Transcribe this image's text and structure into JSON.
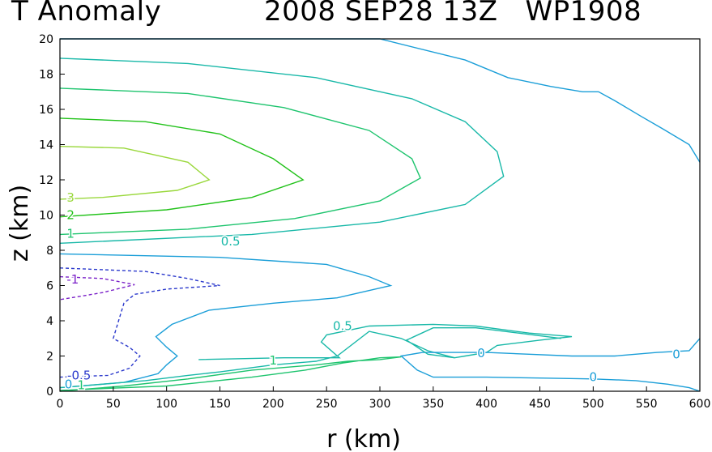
{
  "header": {
    "title_left": "T Anomaly",
    "title_right": "2008 SEP28 13Z   WP1908"
  },
  "chart_data": {
    "type": "contour",
    "title": "T Anomaly 2008 SEP28 13Z WP1908",
    "xlabel": "r (km)",
    "ylabel": "z (km)",
    "xlim": [
      0,
      600
    ],
    "ylim": [
      0,
      20
    ],
    "xticks": [
      0,
      50,
      100,
      150,
      200,
      250,
      300,
      350,
      400,
      450,
      500,
      550,
      600
    ],
    "yticks": [
      0,
      2,
      4,
      6,
      8,
      10,
      12,
      14,
      16,
      18,
      20
    ],
    "contours": [
      {
        "level": "3",
        "color": "#9ad83c",
        "dashed": false,
        "points": [
          [
            0,
            13.9
          ],
          [
            60,
            13.8
          ],
          [
            120,
            13.0
          ],
          [
            140,
            12.0
          ],
          [
            110,
            11.4
          ],
          [
            40,
            11.0
          ],
          [
            0,
            10.9
          ]
        ]
      },
      {
        "level": "2",
        "color": "#22c21a",
        "dashed": false,
        "points": [
          [
            0,
            15.5
          ],
          [
            80,
            15.3
          ],
          [
            150,
            14.6
          ],
          [
            200,
            13.2
          ],
          [
            228,
            12.0
          ],
          [
            180,
            11.0
          ],
          [
            100,
            10.3
          ],
          [
            0,
            9.9
          ]
        ]
      },
      {
        "level": "1",
        "color": "#1ec46e",
        "dashed": false,
        "points": [
          [
            0,
            17.2
          ],
          [
            120,
            16.9
          ],
          [
            210,
            16.1
          ],
          [
            290,
            14.8
          ],
          [
            330,
            13.2
          ],
          [
            338,
            12.1
          ],
          [
            300,
            10.8
          ],
          [
            220,
            9.8
          ],
          [
            120,
            9.2
          ],
          [
            0,
            8.9
          ]
        ]
      },
      {
        "level": "0.5",
        "color": "#18b8a8",
        "dashed": false,
        "points": [
          [
            0,
            18.9
          ],
          [
            120,
            18.6
          ],
          [
            240,
            17.8
          ],
          [
            330,
            16.6
          ],
          [
            380,
            15.3
          ],
          [
            410,
            13.6
          ],
          [
            416,
            12.2
          ],
          [
            380,
            10.6
          ],
          [
            300,
            9.6
          ],
          [
            180,
            8.9
          ],
          [
            0,
            8.4
          ]
        ]
      },
      {
        "level": "0",
        "color": "#1a9ed8",
        "dashed": false,
        "points": [
          [
            0,
            20.0
          ],
          [
            300,
            20.0
          ],
          [
            380,
            18.8
          ],
          [
            420,
            17.8
          ],
          [
            460,
            17.3
          ],
          [
            490,
            17.0
          ],
          [
            505,
            17.0
          ],
          [
            520,
            16.5
          ],
          [
            545,
            15.6
          ],
          [
            565,
            14.9
          ],
          [
            590,
            14.0
          ],
          [
            600,
            13.0
          ]
        ]
      },
      {
        "level": "0",
        "color": "#1a9ed8",
        "dashed": false,
        "points": [
          [
            0,
            7.8
          ],
          [
            150,
            7.6
          ],
          [
            250,
            7.2
          ],
          [
            290,
            6.5
          ],
          [
            310,
            6.0
          ],
          [
            260,
            5.3
          ],
          [
            200,
            5.0
          ],
          [
            140,
            4.6
          ],
          [
            105,
            3.8
          ],
          [
            90,
            3.1
          ],
          [
            100,
            2.5
          ],
          [
            110,
            2.0
          ],
          [
            100,
            1.5
          ],
          [
            92,
            1.0
          ],
          [
            60,
            0.5
          ],
          [
            0,
            0.2
          ]
        ]
      },
      {
        "level": "0.5",
        "color": "#18b8a8",
        "dashed": false,
        "points": [
          [
            130,
            1.8
          ],
          [
            210,
            1.9
          ],
          [
            262,
            1.9
          ],
          [
            245,
            2.8
          ],
          [
            250,
            3.2
          ],
          [
            290,
            3.7
          ],
          [
            350,
            3.8
          ],
          [
            390,
            3.7
          ],
          [
            440,
            3.3
          ],
          [
            480,
            3.1
          ],
          [
            450,
            2.9
          ],
          [
            410,
            2.6
          ],
          [
            400,
            2.2
          ],
          [
            380,
            2.0
          ],
          [
            370,
            1.9
          ],
          [
            345,
            2.3
          ],
          [
            320,
            3.0
          ],
          [
            290,
            3.4
          ],
          [
            260,
            2.0
          ],
          [
            240,
            1.7
          ],
          [
            200,
            1.5
          ],
          [
            150,
            1.1
          ],
          [
            120,
            0.9
          ],
          [
            80,
            0.6
          ],
          [
            0,
            0.2
          ]
        ]
      },
      {
        "level": "1",
        "color": "#1ec46e",
        "dashed": false,
        "points": [
          [
            0,
            0.05
          ],
          [
            100,
            0.3
          ],
          [
            180,
            0.8
          ],
          [
            230,
            1.2
          ],
          [
            265,
            1.6
          ],
          [
            300,
            1.9
          ],
          [
            320,
            1.95
          ],
          [
            300,
            1.8
          ],
          [
            270,
            1.7
          ],
          [
            240,
            1.5
          ],
          [
            180,
            1.2
          ],
          [
            120,
            0.7
          ],
          [
            60,
            0.3
          ],
          [
            0,
            0.0
          ]
        ]
      },
      {
        "level": "0",
        "color": "#1a9ed8",
        "dashed": false,
        "points": [
          [
            600,
            3.0
          ],
          [
            590,
            2.3
          ],
          [
            560,
            2.2
          ],
          [
            520,
            2.0
          ],
          [
            480,
            2.0
          ],
          [
            440,
            2.1
          ],
          [
            400,
            2.2
          ],
          [
            340,
            2.2
          ],
          [
            320,
            2.0
          ],
          [
            335,
            1.2
          ],
          [
            350,
            0.8
          ],
          [
            400,
            0.8
          ],
          [
            450,
            0.75
          ],
          [
            500,
            0.7
          ],
          [
            540,
            0.6
          ],
          [
            570,
            0.4
          ],
          [
            590,
            0.2
          ],
          [
            600,
            0.0
          ]
        ]
      },
      {
        "level": "0.5",
        "color": "#18b8a8",
        "dashed": false,
        "points": [
          [
            370,
            1.9
          ],
          [
            345,
            2.1
          ],
          [
            325,
            2.9
          ],
          [
            350,
            3.6
          ],
          [
            390,
            3.6
          ],
          [
            430,
            3.3
          ],
          [
            470,
            3.0
          ]
        ]
      },
      {
        "level": "-0.5",
        "color": "#2a38cc",
        "dashed": true,
        "points": [
          [
            0,
            7.0
          ],
          [
            80,
            6.8
          ],
          [
            120,
            6.4
          ],
          [
            150,
            6.0
          ],
          [
            100,
            5.8
          ],
          [
            70,
            5.5
          ],
          [
            60,
            5.0
          ],
          [
            55,
            4.0
          ],
          [
            50,
            3.0
          ],
          [
            65,
            2.5
          ],
          [
            75,
            2.0
          ],
          [
            65,
            1.3
          ],
          [
            45,
            0.9
          ],
          [
            0,
            0.8
          ]
        ]
      },
      {
        "level": "-1",
        "color": "#7a20c8",
        "dashed": true,
        "points": [
          [
            0,
            6.5
          ],
          [
            40,
            6.4
          ],
          [
            70,
            6.05
          ],
          [
            40,
            5.6
          ],
          [
            0,
            5.2
          ]
        ]
      }
    ],
    "labels": [
      {
        "text": "3",
        "x": 10,
        "y": 11.0,
        "color": "#9ad83c"
      },
      {
        "text": "2",
        "x": 10,
        "y": 10.0,
        "color": "#22c21a"
      },
      {
        "text": "1",
        "x": 10,
        "y": 8.95,
        "color": "#1ec46e"
      },
      {
        "text": "0.5",
        "x": 160,
        "y": 8.5,
        "color": "#18b8a8"
      },
      {
        "text": "-1",
        "x": 12,
        "y": 6.35,
        "color": "#7a20c8"
      },
      {
        "text": "0.5",
        "x": 265,
        "y": 3.7,
        "color": "#18b8a8"
      },
      {
        "text": "1",
        "x": 200,
        "y": 1.75,
        "color": "#1ec46e"
      },
      {
        "text": "0",
        "x": 395,
        "y": 2.15,
        "color": "#1a9ed8"
      },
      {
        "text": "0",
        "x": 578,
        "y": 2.1,
        "color": "#1a9ed8"
      },
      {
        "text": "0",
        "x": 500,
        "y": 0.8,
        "color": "#1a9ed8"
      },
      {
        "text": "-0.5",
        "x": 18,
        "y": 0.9,
        "color": "#2a38cc"
      },
      {
        "text": "0",
        "x": 8,
        "y": 0.4,
        "color": "#1a9ed8"
      },
      {
        "text": "1",
        "x": 20,
        "y": 0.35,
        "color": "#1ec46e"
      }
    ]
  }
}
